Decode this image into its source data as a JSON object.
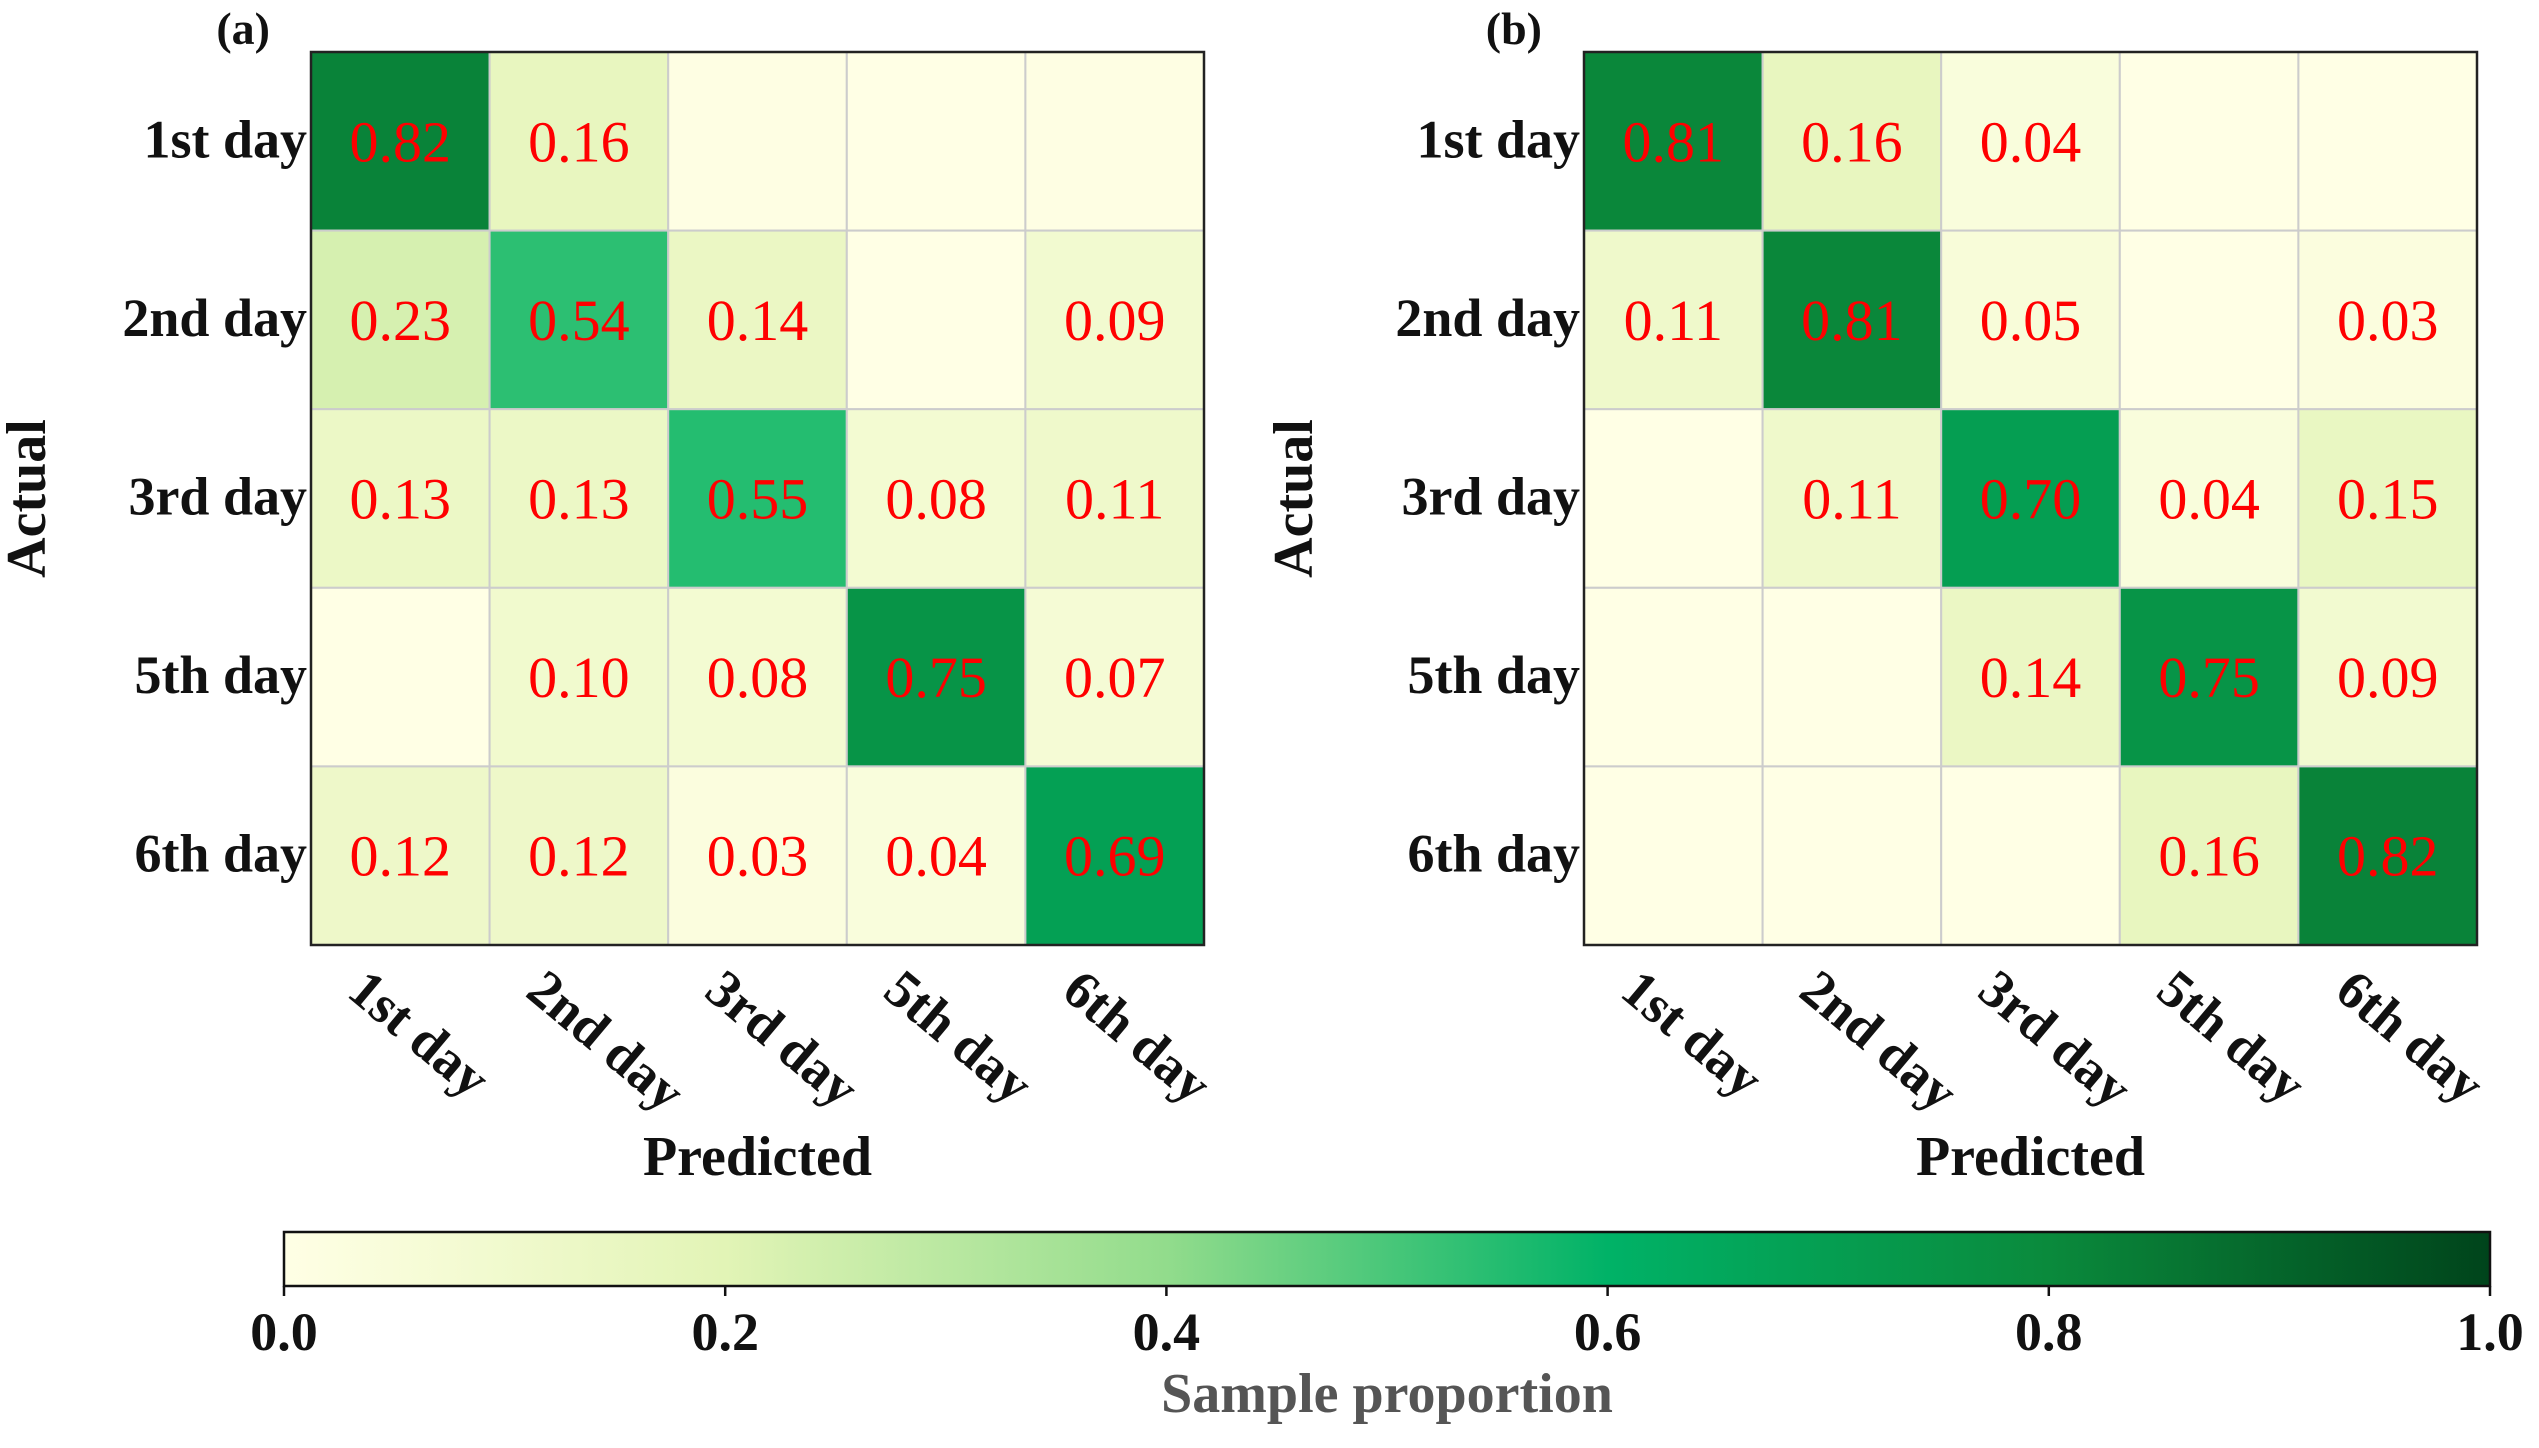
{
  "chart_data": [
    {
      "type": "heatmap",
      "panel_label": "(a)",
      "xlabel": "Predicted",
      "ylabel": "Actual",
      "categories": [
        "1st day",
        "2nd day",
        "3rd day",
        "5th day",
        "6th day"
      ],
      "row_categories": [
        "1st day",
        "2nd day",
        "3rd day",
        "5th day",
        "6th day"
      ],
      "values": [
        [
          0.82,
          0.16,
          0.01,
          0.0,
          0.01
        ],
        [
          0.23,
          0.54,
          0.14,
          0.0,
          0.09
        ],
        [
          0.13,
          0.13,
          0.55,
          0.08,
          0.11
        ],
        [
          0.0,
          0.1,
          0.08,
          0.75,
          0.07
        ],
        [
          0.12,
          0.12,
          0.03,
          0.04,
          0.69
        ]
      ],
      "labels": [
        [
          "0.82",
          "0.16",
          "",
          "",
          ""
        ],
        [
          "0.23",
          "0.54",
          "0.14",
          "",
          "0.09"
        ],
        [
          "0.13",
          "0.13",
          "0.55",
          "0.08",
          "0.11"
        ],
        [
          "",
          "0.10",
          "0.08",
          "0.75",
          "0.07"
        ],
        [
          "0.12",
          "0.12",
          "0.03",
          "0.04",
          "0.69"
        ]
      ]
    },
    {
      "type": "heatmap",
      "panel_label": "(b)",
      "xlabel": "Predicted",
      "ylabel": "Actual",
      "categories": [
        "1st day",
        "2nd day",
        "3rd day",
        "5th day",
        "6th day"
      ],
      "row_categories": [
        "1st day",
        "2nd day",
        "3rd day",
        "5th day",
        "6th day"
      ],
      "values": [
        [
          0.81,
          0.16,
          0.04,
          0.0,
          0.0
        ],
        [
          0.11,
          0.81,
          0.05,
          0.0,
          0.03
        ],
        [
          0.0,
          0.11,
          0.7,
          0.04,
          0.15
        ],
        [
          0.0,
          0.0,
          0.14,
          0.75,
          0.09
        ],
        [
          0.0,
          0.0,
          0.0,
          0.16,
          0.82
        ]
      ],
      "labels": [
        [
          "0.81",
          "0.16",
          "0.04",
          "",
          ""
        ],
        [
          "0.11",
          "0.81",
          "0.05",
          "",
          "0.03"
        ],
        [
          "",
          "0.11",
          "0.70",
          "0.04",
          "0.15"
        ],
        [
          "",
          "",
          "0.14",
          "0.75",
          "0.09"
        ],
        [
          "",
          "",
          "",
          "0.16",
          "0.82"
        ]
      ]
    }
  ],
  "colorbar": {
    "label": "Sample proportion",
    "range": [
      0.0,
      1.0
    ],
    "ticks": [
      "0.0",
      "0.2",
      "0.4",
      "0.6",
      "0.8",
      "1.0"
    ],
    "stops": [
      {
        "v": 0.0,
        "color": "#ffffe5"
      },
      {
        "v": 0.2,
        "color": "#e2f4b6"
      },
      {
        "v": 0.4,
        "color": "#92dc8c"
      },
      {
        "v": 0.6,
        "color": "#00b267"
      },
      {
        "v": 0.8,
        "color": "#0a8a3c"
      },
      {
        "v": 1.0,
        "color": "#00441b"
      }
    ]
  },
  "colors": {
    "cell_text": "#ff0000",
    "cell_border": "#cccccc"
  }
}
